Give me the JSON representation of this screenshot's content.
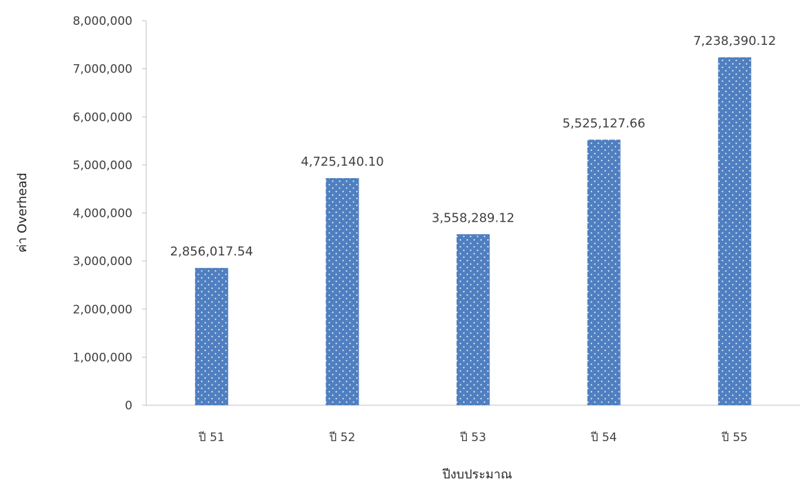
{
  "chart_data": {
    "type": "bar",
    "title": "",
    "xlabel": "ปีงบประมาณ",
    "ylabel": "ค่า Overhead",
    "categories": [
      "ปี 51",
      "ปี 52",
      "ปี 53",
      "ปี 54",
      "ปี 55"
    ],
    "values": [
      2856017.54,
      4725140.1,
      3558289.12,
      5525127.66,
      7238390.12
    ],
    "data_labels": [
      "2,856,017.54",
      "4,725,140.10",
      "3,558,289.12",
      "5,525,127.66",
      "7,238,390.12"
    ],
    "ylim": [
      0,
      8000000
    ],
    "yticks": [
      0,
      1000000,
      2000000,
      3000000,
      4000000,
      5000000,
      6000000,
      7000000,
      8000000
    ],
    "ytick_labels": [
      "0",
      "1,000,000",
      "2,000,000",
      "3,000,000",
      "4,000,000",
      "5,000,000",
      "6,000,000",
      "7,000,000",
      "8,000,000"
    ],
    "grid": false,
    "legend": "none",
    "bar_color": "#4F7FC0",
    "bar_pattern": "white-dots"
  }
}
